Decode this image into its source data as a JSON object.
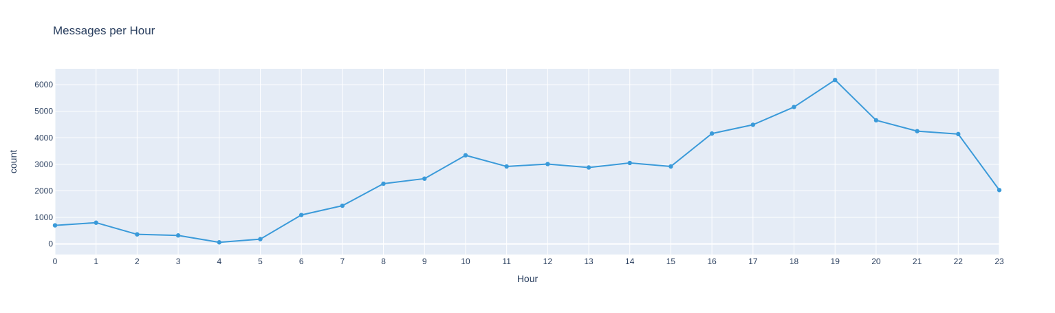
{
  "chart_data": {
    "type": "line",
    "title": "Messages per Hour",
    "xlabel": "Hour",
    "ylabel": "count",
    "x": [
      0,
      1,
      2,
      3,
      4,
      5,
      6,
      7,
      8,
      9,
      10,
      11,
      12,
      13,
      14,
      15,
      16,
      17,
      18,
      19,
      20,
      21,
      22,
      23
    ],
    "series": [
      {
        "values": [
          700,
          800,
          360,
          320,
          60,
          180,
          1090,
          1440,
          2270,
          2460,
          3340,
          2920,
          3010,
          2880,
          3050,
          2920,
          4160,
          4490,
          5160,
          6180,
          4660,
          4250,
          4140,
          2030
        ],
        "color": "#3a9ad9"
      }
    ],
    "xlim": [
      0,
      23
    ],
    "ylim": [
      -400,
      6600
    ],
    "y_ticks": [
      0,
      1000,
      2000,
      3000,
      4000,
      5000,
      6000
    ],
    "x_ticks": [
      0,
      1,
      2,
      3,
      4,
      5,
      6,
      7,
      8,
      9,
      10,
      11,
      12,
      13,
      14,
      15,
      16,
      17,
      18,
      19,
      20,
      21,
      22,
      23
    ],
    "grid": true,
    "legend": "none",
    "plot_background": "#e5ecf6",
    "grid_color": "#ffffff"
  }
}
